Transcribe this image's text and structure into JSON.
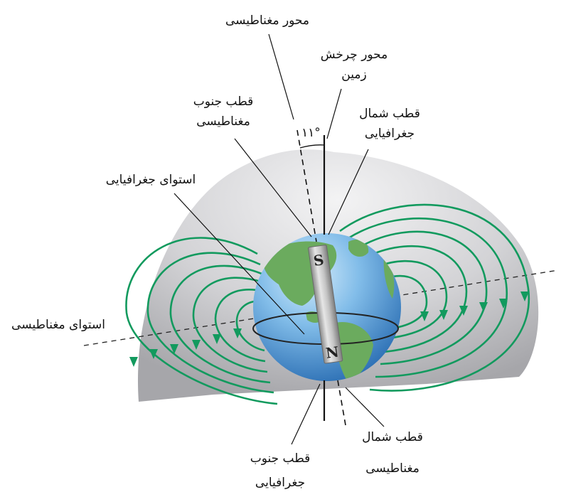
{
  "labels": {
    "magnetic_axis": "محور مغناطیسی",
    "rotation_axis_line1": "محور چرخش",
    "rotation_axis_line2": "زمین",
    "magnetic_south_pole_line1": "قطب جنوب",
    "magnetic_south_pole_line2": "مغناطیسی",
    "geographic_north_pole_line1": "قطب شمال",
    "geographic_north_pole_line2": "جغرافیایی",
    "geographic_equator": "استوای جغرافیایی",
    "magnetic_equator": "استوای مغناطیسی",
    "magnetic_north_pole_line1": "قطب شمال",
    "magnetic_north_pole_line2": "مغناطیسی",
    "geographic_south_pole_line1": "قطب جنوب",
    "geographic_south_pole_line2": "جغرافیایی"
  },
  "angle_label": "۱۱°",
  "magnet": {
    "top_letter": "S",
    "bottom_letter": "N"
  },
  "colors": {
    "field_lines": "#129a5e",
    "shell": "#c9c9cc",
    "ocean": "#5d9fd8",
    "land": "#6bab5e",
    "magnet": "#a9a9a9"
  }
}
